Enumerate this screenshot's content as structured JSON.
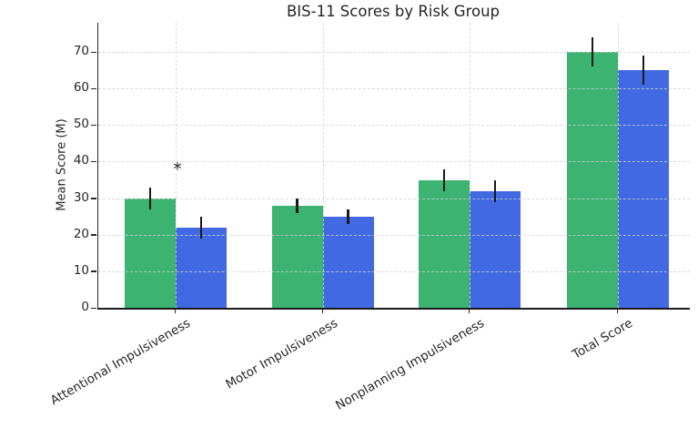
{
  "chart_data": {
    "type": "bar",
    "title": "BIS-11 Scores by Risk Group",
    "ylabel": "Mean Score (M)",
    "xlabel": "",
    "categories": [
      "Attentional Impulsiveness",
      "Motor Impulsiveness",
      "Nonplanning Impulsiveness",
      "Total Score"
    ],
    "series": [
      {
        "name": "green",
        "color": "#3cb371",
        "values": [
          30,
          28,
          35,
          70
        ],
        "errors": [
          3,
          2,
          3,
          4
        ]
      },
      {
        "name": "blue",
        "color": "#4169e1",
        "values": [
          22,
          25,
          32,
          65
        ],
        "errors": [
          3,
          2,
          3,
          4
        ]
      }
    ],
    "yticks": [
      0,
      10,
      20,
      30,
      40,
      50,
      60,
      70
    ],
    "ylim": [
      0,
      78
    ],
    "grid": true,
    "grid_style": "dashed",
    "legend": "none",
    "annotations": [
      {
        "text": "*",
        "category_index": 0
      }
    ],
    "colors": {
      "grid": "#d0d0d0",
      "axis": "#262626",
      "text": "#262626",
      "error_bar": "#1a1a1a",
      "background": "#ffffff"
    }
  }
}
